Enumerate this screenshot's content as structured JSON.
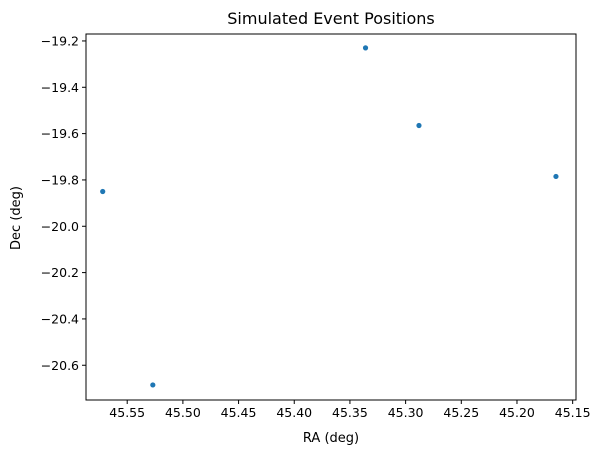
{
  "chart_data": {
    "type": "scatter",
    "title": "Simulated Event Positions",
    "xlabel": "RA (deg)",
    "ylabel": "Dec (deg)",
    "x_inverted": true,
    "xlim": [
      45.587,
      45.147
    ],
    "ylim": [
      -20.75,
      -19.17
    ],
    "grid": false,
    "marker_color": "#1f77b4",
    "x_ticks": [
      45.55,
      45.5,
      45.45,
      45.4,
      45.35,
      45.3,
      45.25,
      45.2,
      45.15
    ],
    "x_tick_labels": [
      "45.55",
      "45.50",
      "45.45",
      "45.40",
      "45.35",
      "45.30",
      "45.25",
      "45.20",
      "45.15"
    ],
    "y_ticks": [
      -19.2,
      -19.4,
      -19.6,
      -19.8,
      -20.0,
      -20.2,
      -20.4,
      -20.6
    ],
    "y_tick_labels": [
      "−19.2",
      "−19.4",
      "−19.6",
      "−19.8",
      "−20.0",
      "−20.2",
      "−20.4",
      "−20.6"
    ],
    "points": [
      {
        "x": 45.572,
        "y": -19.85
      },
      {
        "x": 45.527,
        "y": -20.685
      },
      {
        "x": 45.336,
        "y": -19.23
      },
      {
        "x": 45.288,
        "y": -19.565
      },
      {
        "x": 45.165,
        "y": -19.785
      }
    ]
  }
}
